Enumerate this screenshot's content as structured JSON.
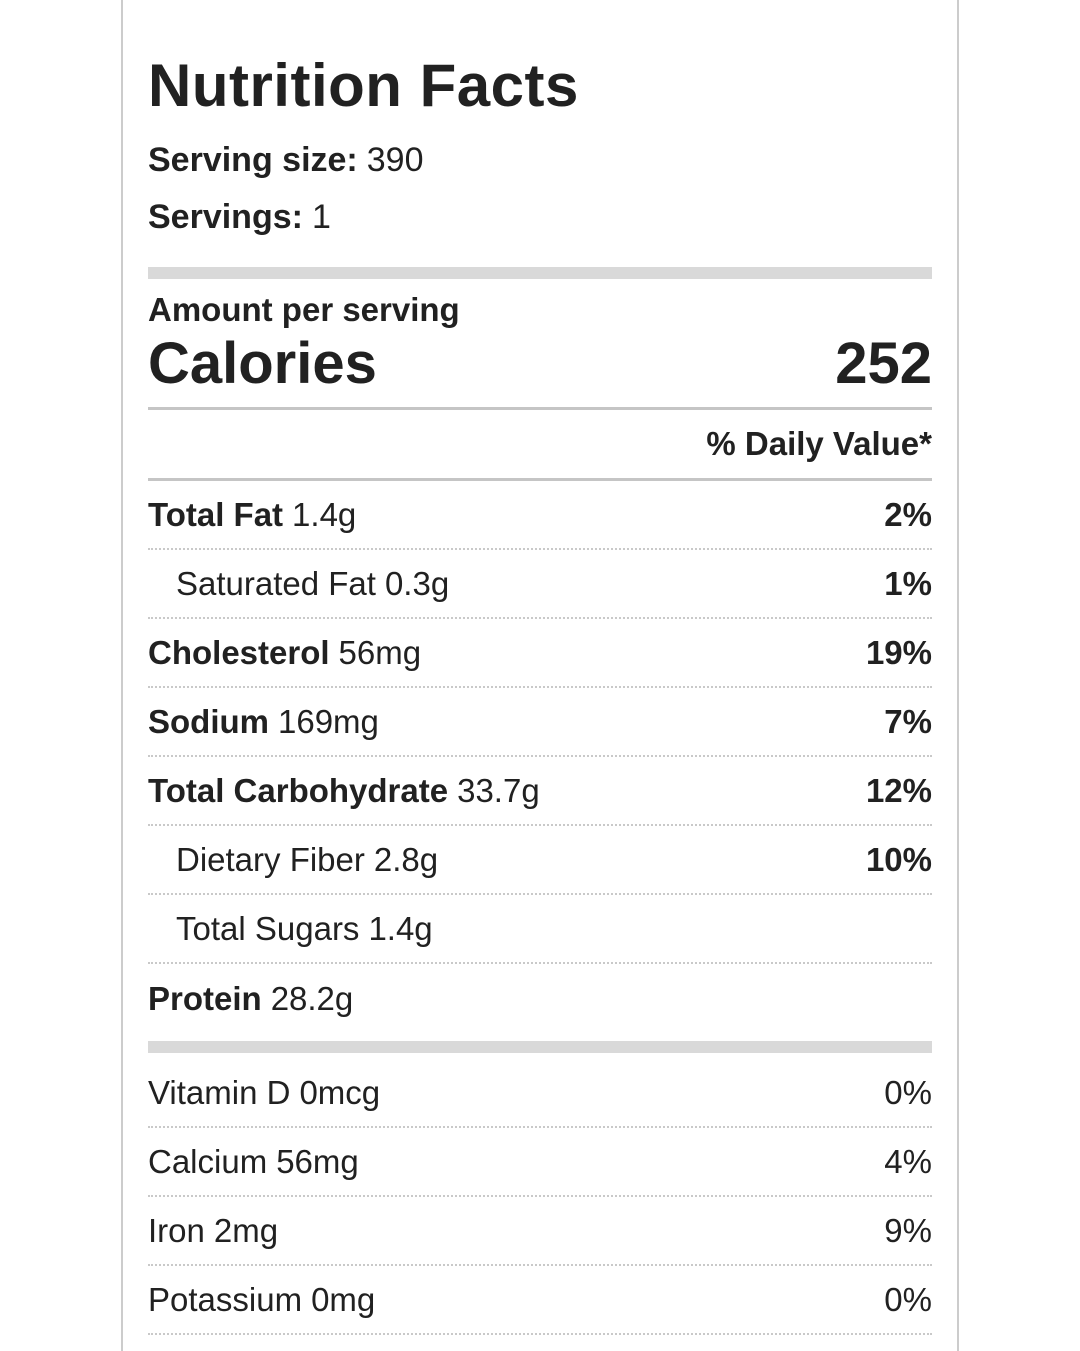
{
  "label": {
    "title": "Nutrition Facts",
    "serving_size_label": "Serving size:",
    "serving_size_value": "390",
    "servings_label": "Servings:",
    "servings_value": "1",
    "amount_per_serving": "Amount per serving",
    "calories_label": "Calories",
    "calories_value": "252",
    "daily_value_header": "% Daily Value*",
    "nutrients": [
      {
        "name": "Total Fat",
        "amount": "1.4g",
        "dv": "2%",
        "bold": true,
        "indent": false,
        "divider": true
      },
      {
        "name": "Saturated Fat",
        "amount": "0.3g",
        "dv": "1%",
        "bold": false,
        "indent": true,
        "divider": true
      },
      {
        "name": "Cholesterol",
        "amount": "56mg",
        "dv": "19%",
        "bold": true,
        "indent": false,
        "divider": true
      },
      {
        "name": "Sodium",
        "amount": "169mg",
        "dv": "7%",
        "bold": true,
        "indent": false,
        "divider": true
      },
      {
        "name": "Total Carbohydrate",
        "amount": "33.7g",
        "dv": "12%",
        "bold": true,
        "indent": false,
        "divider": true
      },
      {
        "name": "Dietary Fiber",
        "amount": "2.8g",
        "dv": "10%",
        "bold": false,
        "indent": true,
        "divider": true
      },
      {
        "name": "Total Sugars",
        "amount": "1.4g",
        "dv": "",
        "bold": false,
        "indent": true,
        "divider": true
      },
      {
        "name": "Protein",
        "amount": "28.2g",
        "dv": "",
        "bold": true,
        "indent": false,
        "divider": false
      }
    ],
    "micronutrients": [
      {
        "name": "Vitamin D",
        "amount": "0mcg",
        "dv": "0%",
        "divider": true
      },
      {
        "name": "Calcium",
        "amount": "56mg",
        "dv": "4%",
        "divider": true
      },
      {
        "name": "Iron",
        "amount": "2mg",
        "dv": "9%",
        "divider": true
      },
      {
        "name": "Potassium",
        "amount": "0mg",
        "dv": "0%",
        "divider": true
      }
    ]
  },
  "colors": {
    "text": "#212121",
    "divider_dotted": "#c9c9c9",
    "divider_solid": "#c5c5c5",
    "section_bar": "#d9d9d9",
    "card_border": "#cccccc",
    "background": "#ffffff"
  }
}
